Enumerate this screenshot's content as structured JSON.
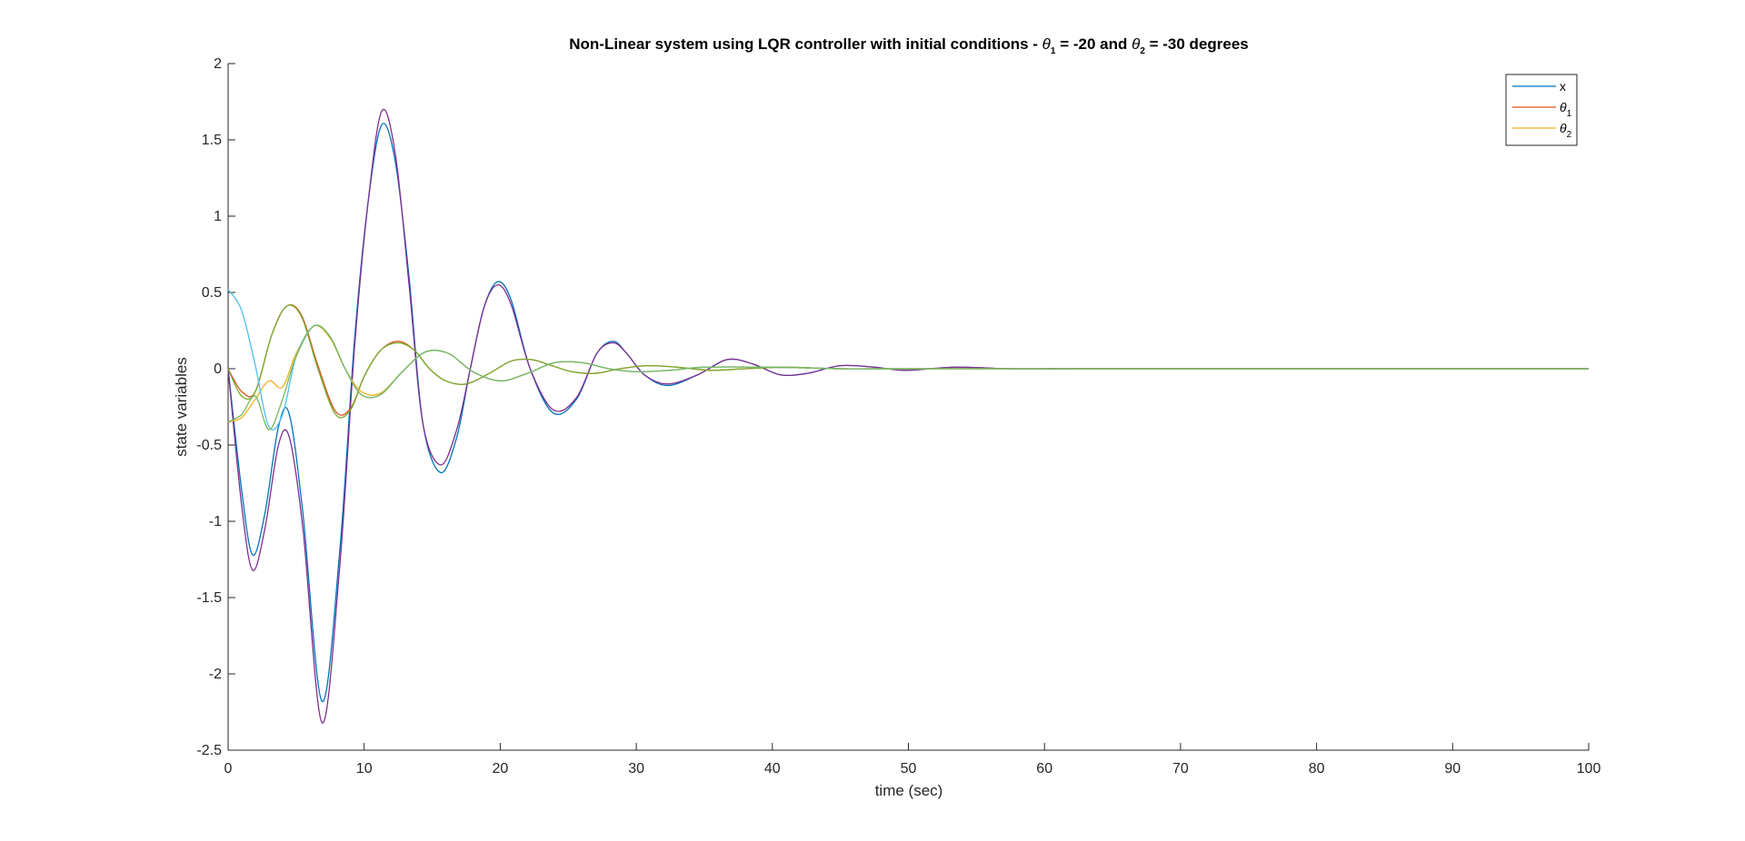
{
  "chart_data": {
    "type": "line",
    "title": {
      "prefix": "Non-Linear system using LQR controller with initial conditions - ",
      "theta": "θ",
      "sub1": "1",
      "mid": " = -20 and ",
      "sub2": "2",
      "suffix": " = -30 degrees"
    },
    "xlabel": "time (sec)",
    "ylabel": "state variables",
    "xlim": [
      0,
      100
    ],
    "ylim": [
      -2.5,
      2
    ],
    "xticks": [
      "0",
      "10",
      "20",
      "30",
      "40",
      "50",
      "60",
      "70",
      "80",
      "90",
      "100"
    ],
    "yticks": [
      "2",
      "1.5",
      "1",
      "0.5",
      "0",
      "-0.5",
      "-1",
      "-1.5",
      "-2",
      "-2.5"
    ],
    "grid": false,
    "legend_position": "top-right",
    "legend": [
      {
        "base": "x",
        "sub": "",
        "color": "#0072BD"
      },
      {
        "base": "θ",
        "sub": "1",
        "color": "#D95319"
      },
      {
        "base": "θ",
        "sub": "2",
        "color": "#EDB120"
      }
    ],
    "series": [
      {
        "color": "#0072BD",
        "x": [
          0,
          1,
          1.8,
          2.7,
          3.7,
          4.5,
          5.5,
          6.9,
          8.2,
          9.3,
          10.3,
          11.3,
          12.3,
          13.3,
          14.3,
          15.6,
          16.8,
          17.8,
          18.8,
          19.8,
          20.8,
          22.2,
          23.9,
          25.6,
          27.1,
          28.3,
          29.3,
          30.6,
          32.3,
          34.5,
          36.7,
          38.6,
          40.6,
          42.6,
          45,
          47.5,
          49.8,
          53.5,
          57.5,
          62,
          67,
          75,
          85,
          100
        ],
        "y": [
          0,
          -0.8,
          -1.22,
          -0.95,
          -0.38,
          -0.3,
          -0.95,
          -2.18,
          -1.2,
          0.2,
          1.1,
          1.6,
          1.35,
          0.6,
          -0.35,
          -0.68,
          -0.45,
          0,
          0.4,
          0.57,
          0.45,
          0,
          -0.29,
          -0.2,
          0.1,
          0.18,
          0.1,
          -0.04,
          -0.11,
          -0.04,
          0.06,
          0.03,
          -0.04,
          -0.03,
          0.02,
          0.01,
          -0.01,
          0.01,
          0,
          0,
          0,
          0,
          0,
          0
        ]
      },
      {
        "color": "#7E2F8E",
        "x": [
          0,
          1,
          1.8,
          2.7,
          3.7,
          4.5,
          5.5,
          6.9,
          8.2,
          9.3,
          10.3,
          11.3,
          12.3,
          13.3,
          14.3,
          15.6,
          16.8,
          17.8,
          18.8,
          19.8,
          20.8,
          22.2,
          23.9,
          25.6,
          27.1,
          28.3,
          29.3,
          30.6,
          32.3,
          34.5,
          36.7,
          38.6,
          40.6,
          42.6,
          45,
          47.5,
          49.8,
          53.5,
          57.5,
          62,
          67,
          75,
          85,
          100
        ],
        "y": [
          0,
          -0.9,
          -1.32,
          -1.05,
          -0.5,
          -0.45,
          -1.05,
          -2.32,
          -1.3,
          0.15,
          1.1,
          1.69,
          1.4,
          0.55,
          -0.35,
          -0.63,
          -0.4,
          0,
          0.4,
          0.55,
          0.42,
          0,
          -0.27,
          -0.19,
          0.1,
          0.17,
          0.1,
          -0.04,
          -0.1,
          -0.04,
          0.06,
          0.03,
          -0.04,
          -0.03,
          0.02,
          0.01,
          -0.01,
          0.01,
          0,
          0,
          0,
          0,
          0,
          0
        ]
      },
      {
        "color": "#D95319",
        "x": [
          0,
          1,
          2,
          3.2,
          4.3,
          5.4,
          6.6,
          7.9,
          9,
          10,
          11.2,
          12.5,
          13.7,
          14.8,
          16,
          17.5,
          19.2,
          20.8,
          22.3,
          23.8,
          25.3,
          27,
          28.8,
          30.8,
          33,
          35.5,
          38,
          41,
          45,
          50,
          60,
          75,
          100
        ],
        "y": [
          0,
          -0.15,
          -0.15,
          0.22,
          0.41,
          0.35,
          0.02,
          -0.28,
          -0.26,
          -0.05,
          0.12,
          0.18,
          0.12,
          0,
          -0.08,
          -0.1,
          -0.03,
          0.05,
          0.06,
          0.02,
          -0.02,
          -0.03,
          0,
          0.02,
          0.01,
          -0.01,
          0,
          0.01,
          0,
          0,
          0,
          0,
          0
        ]
      },
      {
        "color": "#77AC30",
        "x": [
          0,
          1,
          2,
          3.2,
          4.3,
          5.4,
          6.6,
          7.9,
          9,
          10,
          11.2,
          12.5,
          13.7,
          14.8,
          16,
          17.5,
          19.2,
          20.8,
          22.3,
          23.8,
          25.3,
          27,
          28.8,
          30.8,
          33,
          35.5,
          38,
          41,
          45,
          50,
          60,
          75,
          100
        ],
        "y": [
          0,
          -0.18,
          -0.15,
          0.22,
          0.41,
          0.34,
          0.0,
          -0.3,
          -0.27,
          -0.05,
          0.12,
          0.17,
          0.12,
          0,
          -0.08,
          -0.1,
          -0.03,
          0.05,
          0.06,
          0.02,
          -0.02,
          -0.03,
          0,
          0.02,
          0.01,
          -0.01,
          0,
          0.01,
          0,
          0,
          0,
          0,
          0
        ]
      },
      {
        "color": "#EDB120",
        "x": [
          0,
          1,
          2,
          3,
          4,
          5,
          6.3,
          7.5,
          8.6,
          9.8,
          11.2,
          12.8,
          14.5,
          16.2,
          18,
          20,
          22,
          24,
          26,
          28,
          30,
          32.5,
          35,
          40,
          45,
          50,
          60,
          70,
          100
        ],
        "y": [
          -0.35,
          -0.32,
          -0.2,
          -0.08,
          -0.12,
          0.1,
          0.28,
          0.2,
          0.0,
          -0.15,
          -0.16,
          -0.02,
          0.11,
          0.1,
          -0.02,
          -0.08,
          -0.03,
          0.04,
          0.04,
          0,
          -0.02,
          -0.01,
          0.01,
          0.01,
          0,
          0,
          0,
          0,
          0
        ]
      },
      {
        "color": "#4DBEEE",
        "x": [
          0,
          1,
          2,
          3,
          4,
          5,
          6.3,
          7.5,
          8.6,
          9.8,
          11.2,
          12.8,
          14.5,
          16.2,
          18,
          20,
          22,
          24,
          26,
          28,
          30,
          32.5,
          35,
          40,
          45,
          50,
          60,
          70,
          100
        ],
        "y": [
          0.52,
          0.38,
          0.02,
          -0.38,
          -0.3,
          0.08,
          0.28,
          0.21,
          0.0,
          -0.17,
          -0.17,
          -0.02,
          0.11,
          0.1,
          -0.02,
          -0.08,
          -0.03,
          0.04,
          0.04,
          0,
          -0.02,
          -0.01,
          0.01,
          0.01,
          0,
          0,
          0,
          0,
          0
        ]
      },
      {
        "color": "#7AB85E",
        "x": [
          0,
          1,
          2,
          3,
          4,
          5,
          6.3,
          7.5,
          8.6,
          9.8,
          11.2,
          12.8,
          14.5,
          16.2,
          18,
          20,
          22,
          24,
          26,
          28,
          30,
          32.5,
          35,
          40,
          45,
          50,
          60,
          70,
          100
        ],
        "y": [
          -0.35,
          -0.3,
          -0.18,
          -0.4,
          -0.2,
          0.08,
          0.28,
          0.21,
          0.0,
          -0.17,
          -0.17,
          -0.02,
          0.11,
          0.1,
          -0.02,
          -0.08,
          -0.03,
          0.04,
          0.04,
          0,
          -0.02,
          -0.01,
          0.01,
          0.01,
          0,
          0,
          0,
          0,
          0
        ]
      }
    ]
  }
}
